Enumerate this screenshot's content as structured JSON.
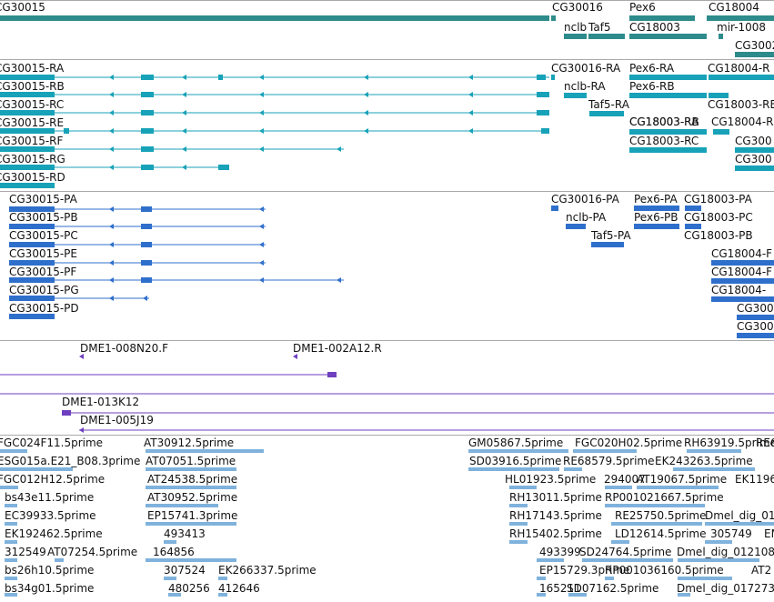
{
  "colors": {
    "gene": "#2e8b8b",
    "transcript": "#17a2b8",
    "cds": "#2f6fcc",
    "clone": "#6f3fbf",
    "est": "#7fb2dc"
  },
  "tracks": {
    "genes": {
      "labels": [
        "CG30015",
        "CG30016",
        "Pex6",
        "CG18004",
        "nclb",
        "Taf5",
        "CG18003",
        "mir-1008",
        "CG3002"
      ]
    },
    "transcripts": {
      "labels": [
        "CG30015-RA",
        "CG30016-RA",
        "Pex6-RA",
        "CG18004-R",
        "CG30015-RB",
        "nclb-RA",
        "Pex6-RB",
        "CG18003-RB",
        "CG30015-RC",
        "Taf5-RA",
        "CG18003-RB",
        "CG30015-RE",
        "CG18003-RA",
        "CG18004-R",
        "CG30015-RF",
        "CG18003-RC",
        "CG300",
        "CG30015-RG",
        "CG300",
        "CG30015-RD"
      ]
    },
    "proteins": {
      "labels": [
        "CG30015-PA",
        "CG30016-PA",
        "Pex6-PA",
        "CG18003-PA",
        "CG30015-PB",
        "nclb-PA",
        "Pex6-PB",
        "CG18003-PC",
        "CG30015-PC",
        "Taf5-PA",
        "CG18003-PB",
        "CG30015-PE",
        "CG18004-F",
        "CG30015-PF",
        "CG18004-F",
        "CG30015-PG",
        "CG18004-",
        "CG30015-PD",
        "CG300",
        "CG300"
      ]
    },
    "clones": {
      "labels": [
        "DME1-008N20.F",
        "DME1-002A12.R",
        "DME1-013K12",
        "DME1-005J19"
      ]
    },
    "ests": {
      "labels": [
        "FGC024F11.5prime",
        "AT30912.5prime",
        "GM05867.5prime",
        "FGC020H02.5prime",
        "RH63919.5prime",
        "RE6",
        "ESG015a.E21_B08.3prime",
        "AT07051.5prime",
        "SD03916.5prime",
        "RE68579.5prime",
        "EK243263.5prime",
        "FGC012H12.5prime",
        "AT24538.5prime",
        "HL01923.5prime",
        "294007",
        "AT19067.5prime",
        "EK1196",
        "bs43e11.5prime",
        "AT30952.5prime",
        "RH13011.5prime",
        "RP001021667.5prime",
        "EC39933.5prime",
        "EP15741.3prime",
        "RH17143.5prime",
        "RE25750.5prime",
        "Dmel_dig_01",
        "EK192462.5prime",
        "493413",
        "RH15402.5prime",
        "LD12614.5prime",
        "305749",
        "EM",
        "312549",
        "AT07254.5prime",
        "164856",
        "493399",
        "SD24764.5prime",
        "Dmel_dig_012108",
        "bs26h10.5prime",
        "307524",
        "EK266337.5prime",
        "EP15729.3prime",
        "RP001036160.5prime",
        "AT2",
        "bs34g01.5prime",
        "480256",
        "412646",
        "165211",
        "SD07162.5prime",
        "Dmel_dig_017273"
      ]
    }
  }
}
